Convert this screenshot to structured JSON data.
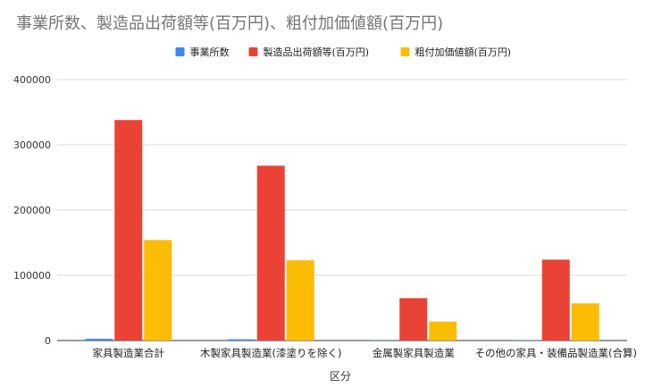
{
  "chart_data": {
    "type": "bar",
    "title": "事業所数、製造品出荷額等(百万円)、粗付加価値額(百万円)",
    "xlabel": "区分",
    "ylabel": "",
    "ylim": [
      0,
      400000
    ],
    "yticks": [
      0,
      100000,
      200000,
      300000,
      400000
    ],
    "ytick_labels": [
      "0",
      "100000",
      "200000",
      "300000",
      "400000"
    ],
    "grid": true,
    "legend": "top-center",
    "categories": [
      "家具製造業合計",
      "木製家具製造業(漆塗りを除く)",
      "金属製家具製造業",
      "その他の家具・装備品製造業(合算)"
    ],
    "series": [
      {
        "name": "事業所数",
        "color": "#4285f4",
        "values": [
          2600,
          1900,
          400,
          500
        ]
      },
      {
        "name": "製造品出荷額等(百万円)",
        "color": "#ea4335",
        "values": [
          338000,
          268000,
          65000,
          124000
        ]
      },
      {
        "name": "粗付加価値額(百万円)",
        "color": "#fbbc04",
        "values": [
          154000,
          123000,
          29000,
          57000
        ]
      }
    ]
  }
}
